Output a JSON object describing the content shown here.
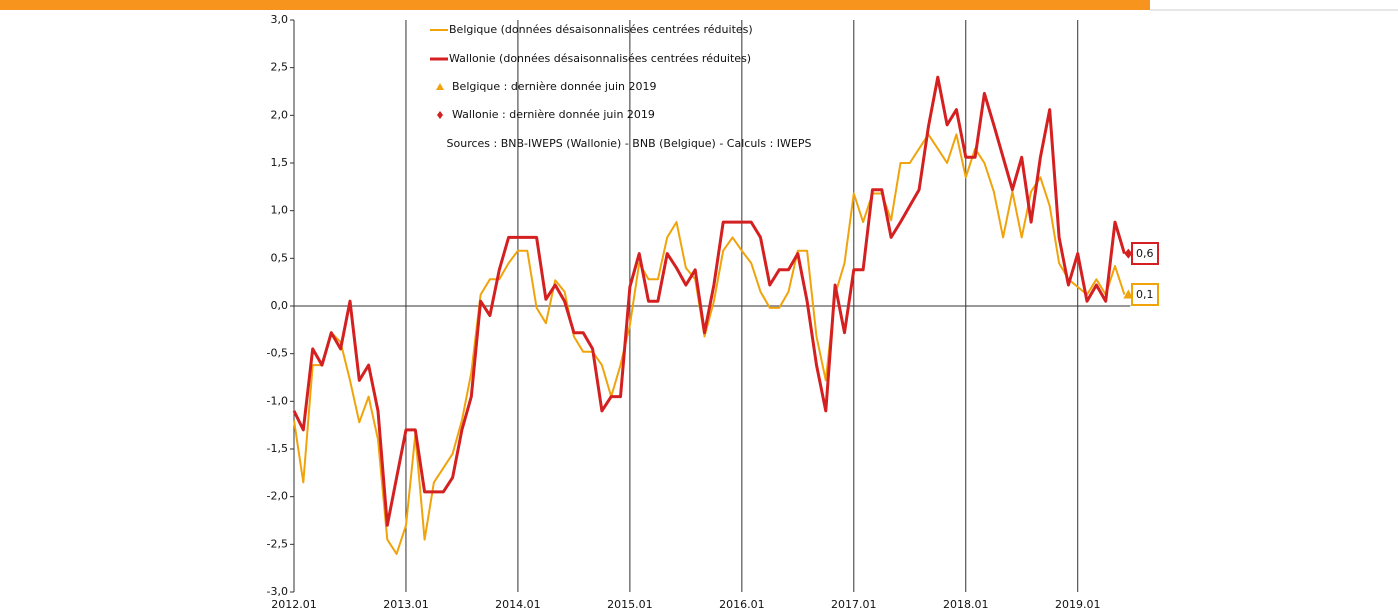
{
  "chart_data": {
    "type": "line",
    "categories": [
      "2012.01",
      null,
      null,
      null,
      null,
      null,
      null,
      null,
      null,
      null,
      null,
      null,
      "2013.01",
      null,
      null,
      null,
      null,
      null,
      null,
      null,
      null,
      null,
      null,
      null,
      "2014.01",
      null,
      null,
      null,
      null,
      null,
      null,
      null,
      null,
      null,
      null,
      null,
      "2015.01",
      null,
      null,
      null,
      null,
      null,
      null,
      null,
      null,
      null,
      null,
      null,
      "2016.01",
      null,
      null,
      null,
      null,
      null,
      null,
      null,
      null,
      null,
      null,
      null,
      "2017.01",
      null,
      null,
      null,
      null,
      null,
      null,
      null,
      null,
      null,
      null,
      null,
      "2018.01",
      null,
      null,
      null,
      null,
      null,
      null,
      null,
      null,
      null,
      null,
      null,
      "2019.01",
      null,
      null,
      null,
      null,
      null
    ],
    "series": [
      {
        "name": "Belgique (données désaisonnalisées centrées réduites)",
        "color": "#f0a30a",
        "width": 2,
        "values": [
          -1.2,
          -1.85,
          -0.62,
          -0.62,
          -0.28,
          -0.38,
          -0.78,
          -1.22,
          -0.95,
          -1.4,
          -2.45,
          -2.6,
          -2.3,
          -1.35,
          -2.45,
          -1.85,
          -1.7,
          -1.55,
          -1.2,
          -0.7,
          0.12,
          0.28,
          0.28,
          0.45,
          0.58,
          0.58,
          -0.02,
          -0.18,
          0.27,
          0.15,
          -0.32,
          -0.48,
          -0.48,
          -0.62,
          -0.95,
          -0.62,
          -0.2,
          0.45,
          0.28,
          0.28,
          0.72,
          0.88,
          0.4,
          0.28,
          -0.32,
          0.05,
          0.58,
          0.72,
          0.58,
          0.45,
          0.15,
          -0.02,
          -0.02,
          0.15,
          0.58,
          0.58,
          -0.32,
          -0.78,
          0.12,
          0.45,
          1.18,
          0.88,
          1.18,
          1.18,
          0.9,
          1.5,
          1.5,
          1.65,
          1.8,
          1.65,
          1.5,
          1.8,
          1.35,
          1.65,
          1.5,
          1.2,
          0.72,
          1.2,
          0.72,
          1.2,
          1.35,
          1.05,
          0.45,
          0.28,
          0.2,
          0.12,
          0.28,
          0.12,
          0.42,
          0.12
        ],
        "last_marker": {
          "name": "Belgique : dernière donnée juin 2019",
          "shape": "triangle",
          "label": "0,1"
        }
      },
      {
        "name": "Wallonie (données désaisonnalisées centrées réduites)",
        "color": "#d42020",
        "width": 3,
        "values": [
          -1.1,
          -1.3,
          -0.45,
          -0.62,
          -0.28,
          -0.45,
          0.05,
          -0.78,
          -0.62,
          -1.1,
          -2.3,
          -1.8,
          -1.3,
          -1.3,
          -1.95,
          -1.95,
          -1.95,
          -1.8,
          -1.3,
          -0.95,
          0.05,
          -0.1,
          0.38,
          0.72,
          0.72,
          0.72,
          0.72,
          0.07,
          0.22,
          0.05,
          -0.28,
          -0.28,
          -0.45,
          -1.1,
          -0.95,
          -0.95,
          0.2,
          0.55,
          0.05,
          0.05,
          0.55,
          0.4,
          0.22,
          0.38,
          -0.28,
          0.22,
          0.88,
          0.88,
          0.88,
          0.88,
          0.72,
          0.22,
          0.38,
          0.38,
          0.55,
          0.05,
          -0.62,
          -1.1,
          0.22,
          -0.28,
          0.38,
          0.38,
          1.22,
          1.22,
          0.72,
          0.88,
          1.05,
          1.22,
          1.88,
          2.4,
          1.9,
          2.06,
          1.56,
          1.56,
          2.23,
          1.9,
          1.56,
          1.22,
          1.56,
          0.88,
          1.56,
          2.06,
          0.72,
          0.22,
          0.55,
          0.05,
          0.22,
          0.05,
          0.88,
          0.55
        ],
        "last_marker": {
          "name": "Wallonie : dernière donnée juin 2019",
          "shape": "diamond",
          "label": "0,6"
        }
      }
    ],
    "annotation": "Sources : BNB-IWEPS (Wallonie) - BNB (Belgique) - Calculs : IWEPS",
    "ylim": [
      -3,
      3
    ],
    "yticks": [
      {
        "value": -3,
        "label": "-3,0"
      },
      {
        "value": -2.5,
        "label": "-2,5"
      },
      {
        "value": -2,
        "label": "-2,0"
      },
      {
        "value": -1.5,
        "label": "-1,5"
      },
      {
        "value": -1,
        "label": "-1,0"
      },
      {
        "value": -0.5,
        "label": "-0,5"
      },
      {
        "value": 0,
        "label": "0,0"
      },
      {
        "value": 0.5,
        "label": "0,5"
      },
      {
        "value": 1,
        "label": "1,0"
      },
      {
        "value": 1.5,
        "label": "1,5"
      },
      {
        "value": 2,
        "label": "2,0"
      },
      {
        "value": 2.5,
        "label": "2,5"
      },
      {
        "value": 3,
        "label": "3,0"
      }
    ],
    "vertical_grid": true
  }
}
